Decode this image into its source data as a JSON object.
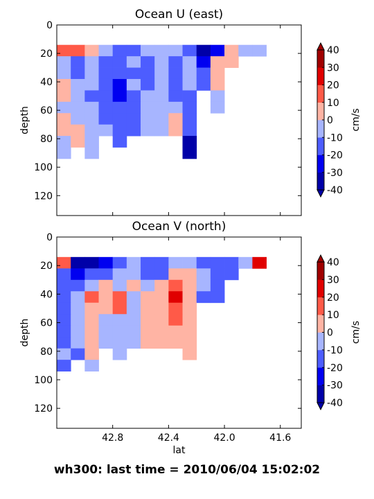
{
  "figure_title": "wh300: last time = 2010/06/04 15:02:02",
  "chart_data": [
    {
      "type": "contourf",
      "title": "Ocean U (east)",
      "ylabel": "depth",
      "x": [
        43.15,
        43.05,
        42.95,
        42.85,
        42.75,
        42.65,
        42.55,
        42.45,
        42.35,
        42.25,
        42.15,
        42.05,
        41.95,
        41.85,
        41.75
      ],
      "depth": [
        18,
        26,
        34,
        42,
        50,
        58,
        66,
        74,
        82,
        90
      ],
      "z": [
        [
          15,
          15,
          5,
          -5,
          -15,
          -15,
          -5,
          -5,
          -5,
          -15,
          -35,
          -25,
          5,
          -5,
          -5
        ],
        [
          -5,
          -15,
          -5,
          -15,
          -15,
          -5,
          -15,
          -5,
          -15,
          -5,
          -25,
          5,
          5,
          null,
          null
        ],
        [
          -5,
          -15,
          -5,
          -15,
          -15,
          -15,
          -15,
          -5,
          -15,
          -5,
          -15,
          5,
          null,
          null,
          null
        ],
        [
          5,
          -5,
          -5,
          -15,
          -25,
          -5,
          -15,
          -5,
          -15,
          -5,
          -15,
          5,
          null,
          null,
          null
        ],
        [
          5,
          -5,
          -15,
          -15,
          -25,
          -15,
          -5,
          -5,
          -15,
          -15,
          null,
          -5,
          null,
          null,
          null
        ],
        [
          -5,
          -5,
          -5,
          -15,
          -15,
          -15,
          -5,
          -5,
          -5,
          -15,
          null,
          -5,
          null,
          null,
          null
        ],
        [
          5,
          -5,
          -5,
          -15,
          -15,
          -15,
          -5,
          -5,
          5,
          -15,
          null,
          null,
          null,
          null,
          null
        ],
        [
          5,
          5,
          -5,
          -5,
          -15,
          -15,
          -5,
          -5,
          5,
          -15,
          null,
          null,
          null,
          null,
          null
        ],
        [
          -5,
          5,
          -5,
          null,
          -15,
          null,
          null,
          null,
          null,
          -35,
          null,
          null,
          null,
          null,
          null
        ],
        [
          -5,
          null,
          -5,
          null,
          null,
          null,
          null,
          null,
          null,
          -35,
          null,
          null,
          null,
          null,
          null
        ]
      ],
      "xlim": [
        43.2,
        41.45
      ],
      "ylim": [
        134,
        0
      ],
      "xticks": [
        42.8,
        42.4,
        {
          "value": 42,
          "label": "42.0"
        },
        41.6
      ],
      "show_xticklabels": false,
      "yticks": [
        0,
        20,
        40,
        60,
        80,
        100,
        120
      ],
      "colorbar": {
        "levels": [
          -40,
          -30,
          -20,
          -10,
          0,
          10,
          20,
          30,
          40
        ],
        "colors": [
          "#0000a8",
          "#0000f0",
          "#4d5dff",
          "#a7b5ff",
          "#ffb4a4",
          "#ff5a48",
          "#e00000",
          "#a00000"
        ],
        "ticks": [
          -40,
          -30,
          -20,
          -10,
          0,
          10,
          20,
          30,
          40
        ],
        "label": "cm/s",
        "extend": "both"
      }
    },
    {
      "type": "contourf",
      "title": "Ocean V (north)",
      "ylabel": "depth",
      "xlabel": "lat",
      "x": [
        43.15,
        43.05,
        42.95,
        42.85,
        42.75,
        42.65,
        42.55,
        42.45,
        42.35,
        42.25,
        42.15,
        42.05,
        41.95,
        41.85,
        41.75
      ],
      "depth": [
        18,
        26,
        34,
        42,
        50,
        58,
        66,
        74,
        82,
        90
      ],
      "z": [
        [
          15,
          -35,
          -35,
          -25,
          -15,
          -5,
          -15,
          -15,
          -5,
          -5,
          -15,
          -15,
          -15,
          -5,
          25
        ],
        [
          -15,
          -25,
          -15,
          -15,
          -5,
          -5,
          -15,
          -15,
          5,
          5,
          -5,
          -15,
          -15,
          null,
          null
        ],
        [
          -15,
          -15,
          -5,
          5,
          -5,
          5,
          -5,
          5,
          15,
          5,
          -5,
          -15,
          null,
          null,
          null
        ],
        [
          -15,
          -5,
          15,
          5,
          15,
          -5,
          5,
          5,
          25,
          5,
          -15,
          -15,
          null,
          null,
          null
        ],
        [
          -15,
          -5,
          5,
          5,
          15,
          -5,
          5,
          5,
          15,
          5,
          null,
          null,
          null,
          null,
          null
        ],
        [
          -15,
          -5,
          5,
          -5,
          -5,
          -5,
          5,
          5,
          15,
          5,
          null,
          null,
          null,
          null,
          null
        ],
        [
          -15,
          -5,
          5,
          -5,
          -5,
          -5,
          5,
          5,
          5,
          5,
          null,
          null,
          null,
          null,
          null
        ],
        [
          -15,
          -5,
          5,
          -5,
          -5,
          -5,
          5,
          5,
          5,
          5,
          null,
          null,
          null,
          null,
          null
        ],
        [
          -5,
          -15,
          5,
          null,
          -5,
          null,
          null,
          null,
          null,
          5,
          null,
          null,
          null,
          null,
          null
        ],
        [
          -15,
          null,
          -5,
          null,
          null,
          null,
          null,
          null,
          null,
          null,
          null,
          null,
          null,
          null,
          null
        ]
      ],
      "xlim": [
        43.2,
        41.45
      ],
      "ylim": [
        134,
        0
      ],
      "xticks": [
        42.8,
        42.4,
        {
          "value": 42,
          "label": "42.0"
        },
        41.6
      ],
      "show_xticklabels": true,
      "yticks": [
        0,
        20,
        40,
        60,
        80,
        100,
        120
      ],
      "colorbar": {
        "levels": [
          -40,
          -30,
          -20,
          -10,
          0,
          10,
          20,
          30,
          40
        ],
        "colors": [
          "#0000a8",
          "#0000f0",
          "#4d5dff",
          "#a7b5ff",
          "#ffb4a4",
          "#ff5a48",
          "#e00000",
          "#a00000"
        ],
        "ticks": [
          -40,
          -30,
          -20,
          -10,
          0,
          10,
          20,
          30,
          40
        ],
        "label": "cm/s",
        "extend": "both"
      }
    }
  ]
}
